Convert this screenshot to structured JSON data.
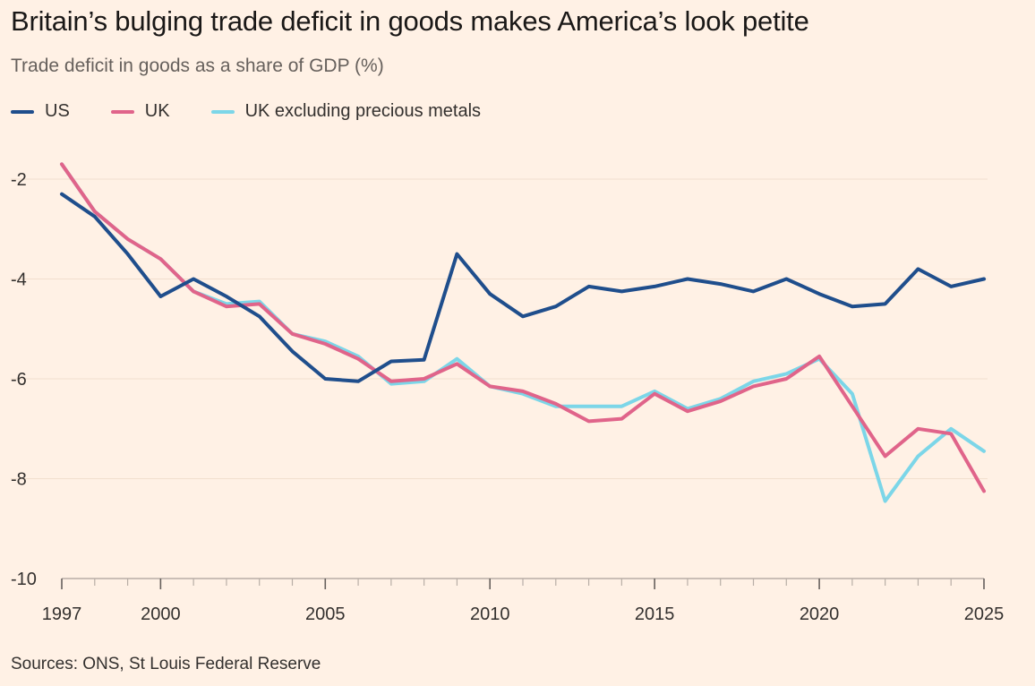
{
  "chart_data": {
    "type": "line",
    "title": "Britain’s bulging trade deficit in goods makes America’s look petite",
    "subtitle": "Trade deficit in goods as a share of GDP (%)",
    "xlabel": "",
    "ylabel": "",
    "xlim": [
      1997,
      2025
    ],
    "ylim": [
      -10,
      -1.6
    ],
    "yticks": [
      -2,
      -4,
      -6,
      -8,
      -10
    ],
    "xticks": [
      1997,
      2000,
      2005,
      2010,
      2015,
      2020,
      2025
    ],
    "x": [
      1997,
      1998,
      1999,
      2000,
      2001,
      2002,
      2003,
      2004,
      2005,
      2006,
      2007,
      2008,
      2009,
      2010,
      2011,
      2012,
      2013,
      2014,
      2015,
      2016,
      2017,
      2018,
      2019,
      2020,
      2021,
      2022,
      2023,
      2024,
      2025
    ],
    "series": [
      {
        "name": "US",
        "color": "#1F4E8C",
        "values": [
          -2.3,
          -2.75,
          -3.5,
          -4.35,
          -4.0,
          -4.35,
          -4.75,
          -5.45,
          -6.0,
          -6.05,
          -5.65,
          -5.62,
          -3.5,
          -4.3,
          -4.75,
          -4.55,
          -4.15,
          -4.25,
          -4.15,
          -4.0,
          -4.1,
          -4.25,
          -4.0,
          -4.3,
          -4.55,
          -4.5,
          -3.8,
          -4.15,
          -4.0
        ]
      },
      {
        "name": "UK",
        "color": "#E0648A",
        "values": [
          -1.7,
          -2.65,
          -3.2,
          -3.6,
          -4.25,
          -4.55,
          -4.5,
          -5.1,
          -5.3,
          -5.6,
          -6.05,
          -6.0,
          -5.7,
          -6.15,
          -6.25,
          -6.5,
          -6.85,
          -6.8,
          -6.3,
          -6.65,
          -6.45,
          -6.15,
          -6.0,
          -5.55,
          -6.55,
          -7.55,
          -7.0,
          -7.1,
          -8.25
        ]
      },
      {
        "name": "UK excluding precious metals",
        "color": "#7CD6E8",
        "values": [
          -1.7,
          -2.65,
          -3.2,
          -3.6,
          -4.25,
          -4.5,
          -4.45,
          -5.1,
          -5.25,
          -5.55,
          -6.1,
          -6.05,
          -5.6,
          -6.15,
          -6.3,
          -6.55,
          -6.55,
          -6.55,
          -6.25,
          -6.6,
          -6.4,
          -6.05,
          -5.9,
          -5.6,
          -6.3,
          -8.45,
          -7.55,
          -7.0,
          -7.45
        ]
      }
    ]
  },
  "source": "Sources: ONS, St Louis Federal Reserve"
}
